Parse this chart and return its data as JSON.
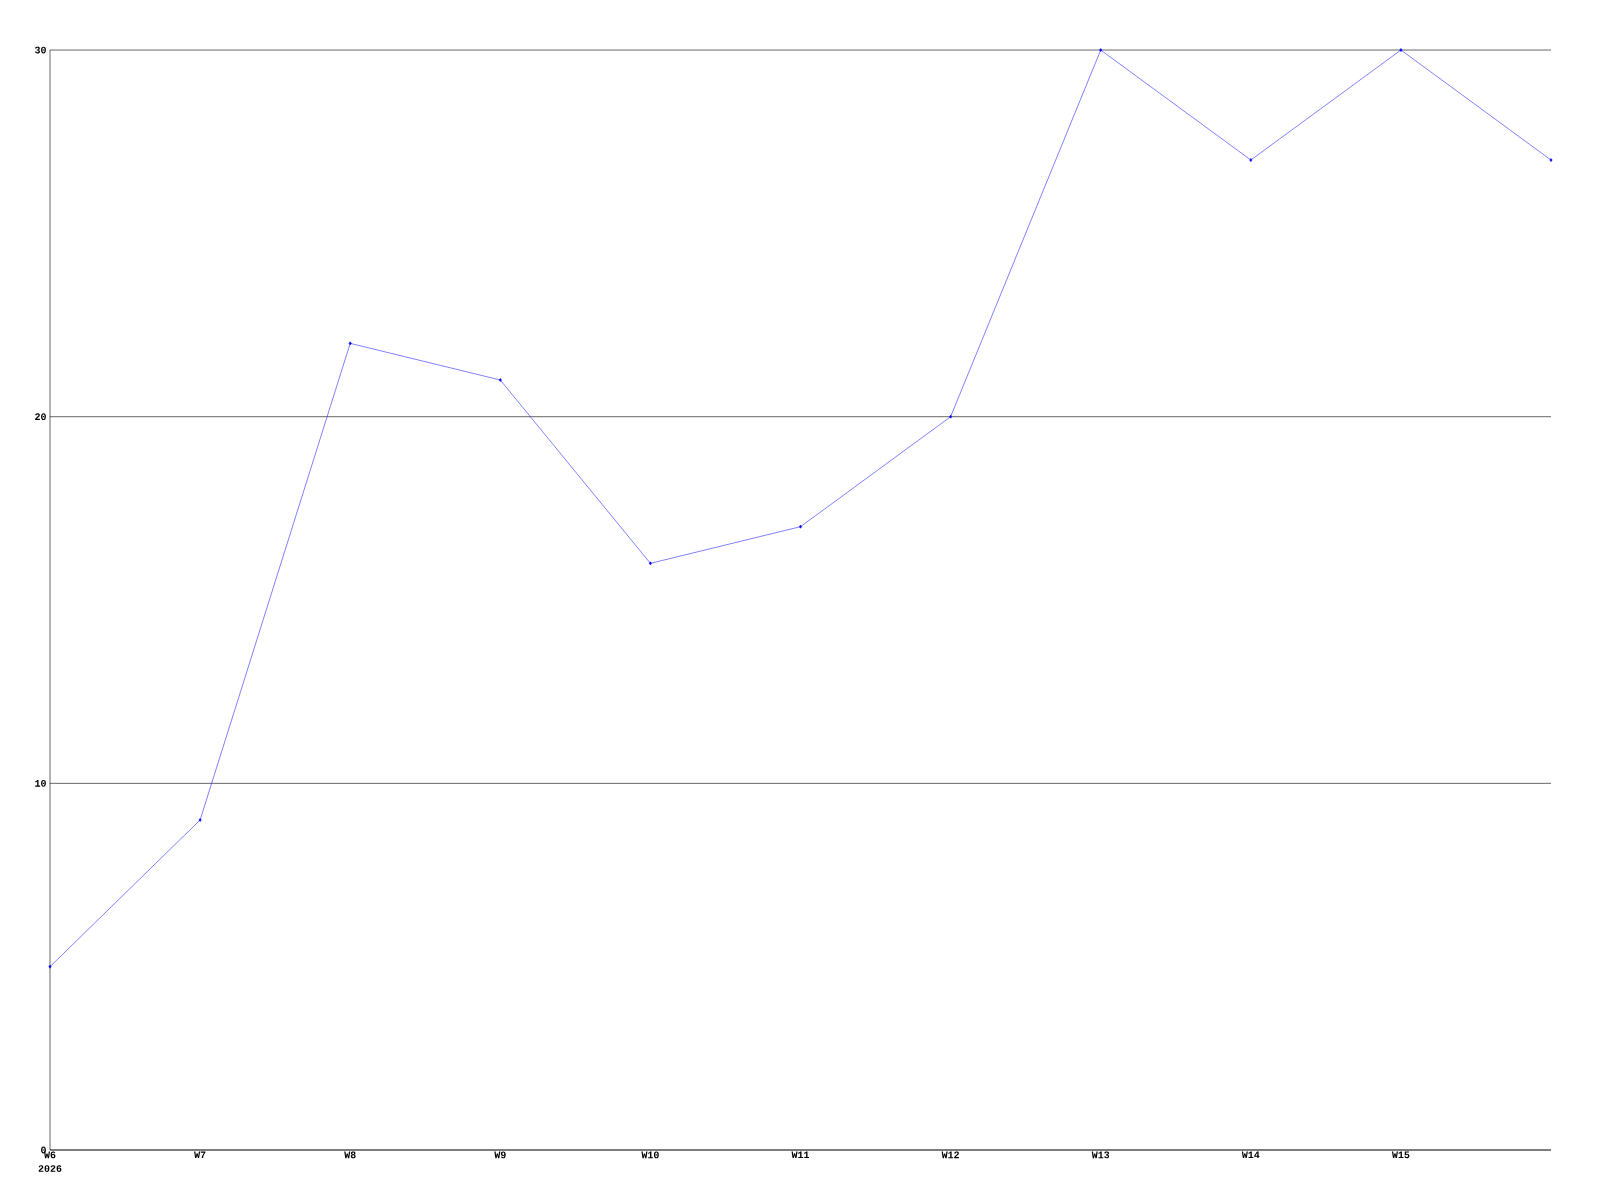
{
  "chart_data": {
    "type": "line",
    "categories": [
      "W6",
      "W7",
      "W8",
      "W9",
      "W10",
      "W11",
      "W12",
      "W13",
      "W14",
      "W15",
      null
    ],
    "series": [
      {
        "color": "#0000ff",
        "values": [
          5,
          9,
          22,
          21,
          16,
          17,
          20,
          30,
          27,
          30,
          27
        ]
      }
    ],
    "ylim": [
      0,
      30
    ],
    "yticks": [
      0,
      10,
      20,
      30
    ],
    "grid": "y",
    "marker": "diamond",
    "line_style": "solid",
    "annotations": [
      "2026"
    ]
  }
}
